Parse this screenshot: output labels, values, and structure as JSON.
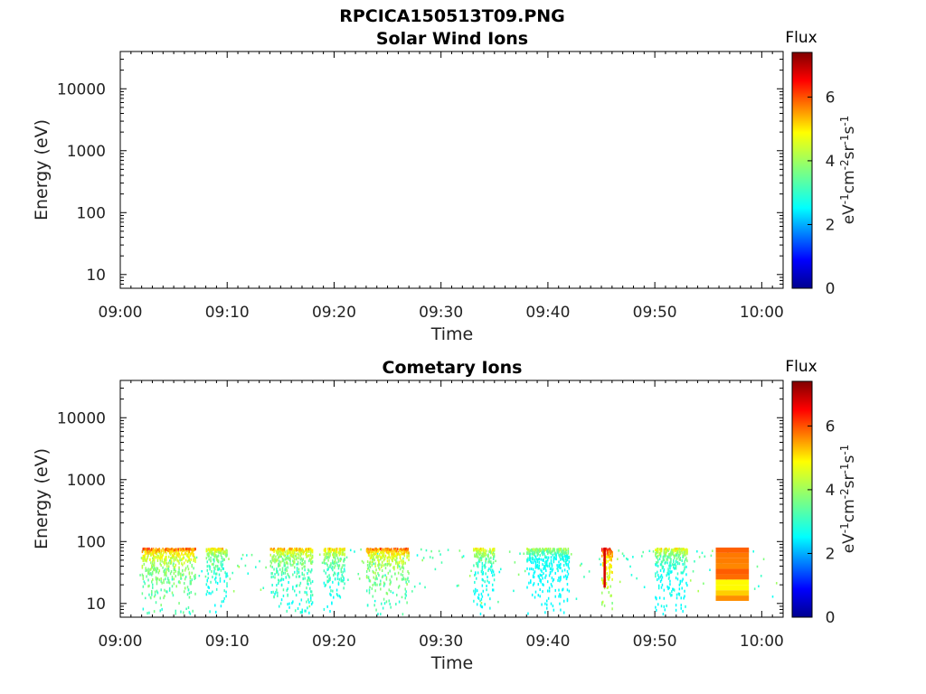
{
  "figure_title": "RPCICA150513T09.PNG",
  "chart_data": [
    {
      "type": "heatmap",
      "title": "Solar Wind Ions",
      "xlabel": "Time",
      "ylabel": "Energy (eV)",
      "x_ticks": [
        "09:00",
        "09:10",
        "09:20",
        "09:30",
        "09:40",
        "09:50",
        "10:00"
      ],
      "y_ticks": [
        "10",
        "100",
        "1000",
        "10000"
      ],
      "y_scale": "log",
      "xlim": [
        "09:00",
        "10:02"
      ],
      "ylim": [
        6,
        40000
      ],
      "colorbar": {
        "label": "Flux",
        "ticks": [
          "0",
          "2",
          "4",
          "6"
        ],
        "range": [
          0,
          7.4
        ],
        "colormap": "jet",
        "unit_main": "eV",
        "unit_sup": [
          "-1",
          "-2",
          "-1",
          "-1"
        ],
        "unit_parts": [
          "cm",
          "sr",
          "s"
        ]
      },
      "data": []
    },
    {
      "type": "heatmap",
      "title": "Cometary Ions",
      "xlabel": "Time",
      "ylabel": "Energy (eV)",
      "x_ticks": [
        "09:00",
        "09:10",
        "09:20",
        "09:30",
        "09:40",
        "09:50",
        "10:00"
      ],
      "y_ticks": [
        "10",
        "100",
        "1000",
        "10000"
      ],
      "y_scale": "log",
      "xlim": [
        "09:00",
        "10:02"
      ],
      "ylim": [
        6,
        40000
      ],
      "colorbar": {
        "label": "Flux",
        "ticks": [
          "0",
          "2",
          "4",
          "6"
        ],
        "range": [
          0,
          7.4
        ],
        "colormap": "jet",
        "unit_main": "eV",
        "unit_sup": [
          "-1",
          "-2",
          "-1",
          "-1"
        ],
        "unit_parts": [
          "cm",
          "sr",
          "s"
        ]
      },
      "energy_range_eV": [
        10,
        80
      ],
      "activity_bursts": [
        {
          "start": "09:02",
          "end": "09:07",
          "peak_flux": 6.0
        },
        {
          "start": "09:08",
          "end": "09:10",
          "peak_flux": 5.2
        },
        {
          "start": "09:14",
          "end": "09:18",
          "peak_flux": 5.5
        },
        {
          "start": "09:19",
          "end": "09:21",
          "peak_flux": 5.3
        },
        {
          "start": "09:23",
          "end": "09:27",
          "peak_flux": 6.0
        },
        {
          "start": "09:33",
          "end": "09:35",
          "peak_flux": 5.0
        },
        {
          "start": "09:38",
          "end": "09:42",
          "peak_flux": 4.3
        },
        {
          "start": "09:45",
          "end": "09:46",
          "peak_flux": 6.8
        },
        {
          "start": "09:50",
          "end": "09:53",
          "peak_flux": 5.0
        },
        {
          "start": "09:56",
          "end": "09:59",
          "peak_flux": 5.8
        }
      ]
    }
  ]
}
